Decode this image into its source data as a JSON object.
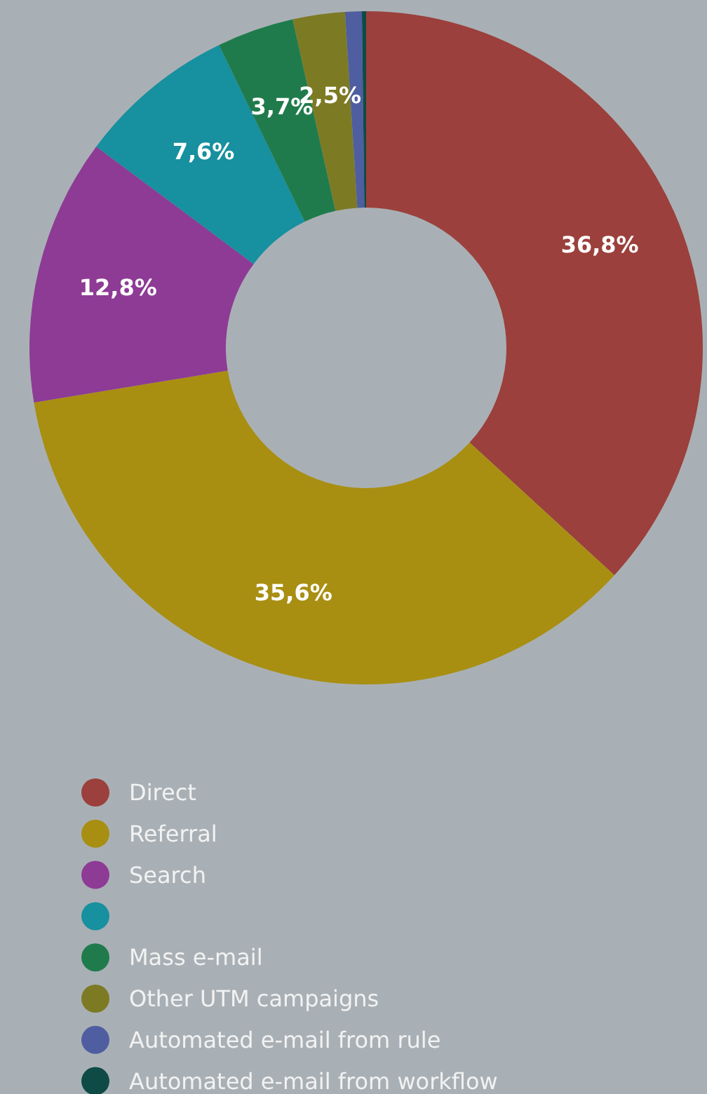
{
  "chart_data": {
    "type": "donut",
    "categories": [
      "Direct",
      "Referral",
      "Search",
      null,
      "Mass e-mail",
      "Other UTM campaigns",
      "Automated e-mail from rule",
      "Automated e-mail from workflow"
    ],
    "values": [
      36.8,
      35.6,
      12.8,
      7.6,
      3.7,
      2.5,
      0.8,
      0.2
    ],
    "value_labels": [
      "36,8%",
      "35,6%",
      "12,8%",
      "7,6%",
      "3,7%",
      "2,5%",
      null,
      null
    ],
    "colors": [
      "#9b403c",
      "#a88f12",
      "#8d3b95",
      "#17909f",
      "#207b4c",
      "#7d7a24",
      "#4e5ea0",
      "#0e4b47"
    ],
    "legend": "bottom"
  }
}
